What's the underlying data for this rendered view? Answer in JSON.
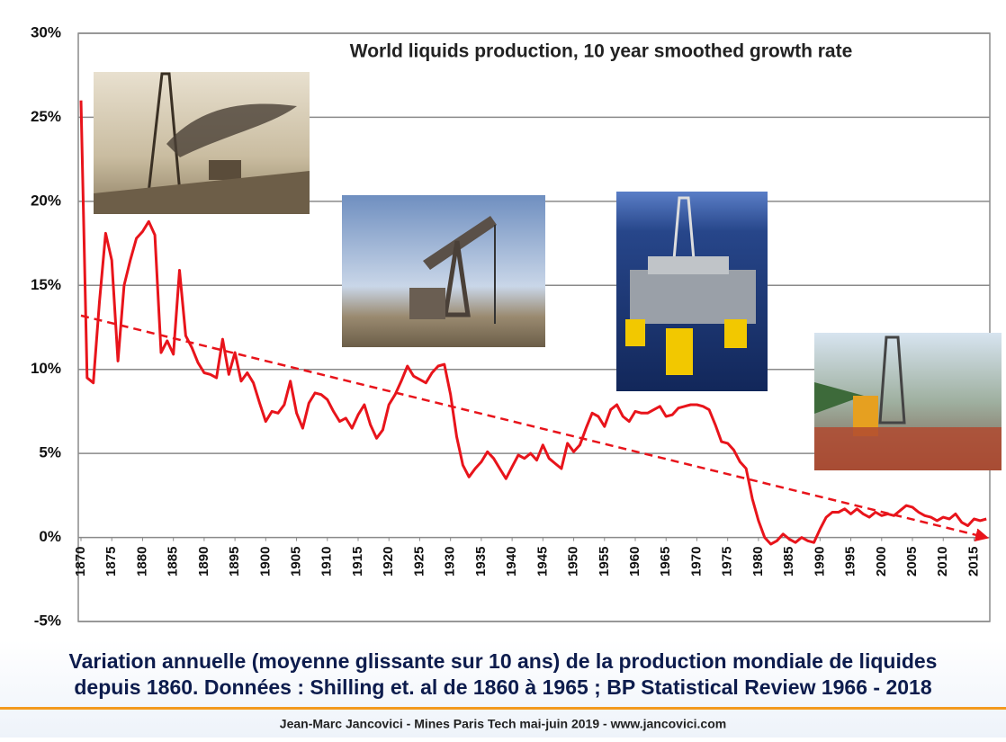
{
  "chart_data": {
    "type": "line",
    "title": "World liquids production, 10 year smoothed growth rate",
    "caption": [
      "Variation annuelle (moyenne glissante sur 10 ans) de la production mondiale de liquides",
      "depuis 1860. Données : Shilling et. al de 1860 à 1965 ; BP Statistical Review 1966 - 2018"
    ],
    "footer": "Jean-Marc Jancovici - Mines Paris Tech mai-juin 2019 - www.jancovici.com",
    "x": [
      1870,
      1871,
      1872,
      1873,
      1874,
      1875,
      1876,
      1877,
      1878,
      1879,
      1880,
      1881,
      1882,
      1883,
      1884,
      1885,
      1886,
      1887,
      1888,
      1889,
      1890,
      1891,
      1892,
      1893,
      1894,
      1895,
      1896,
      1897,
      1898,
      1899,
      1900,
      1901,
      1902,
      1903,
      1904,
      1905,
      1906,
      1907,
      1908,
      1909,
      1910,
      1911,
      1912,
      1913,
      1914,
      1915,
      1916,
      1917,
      1918,
      1919,
      1920,
      1921,
      1922,
      1923,
      1924,
      1925,
      1926,
      1927,
      1928,
      1929,
      1930,
      1931,
      1932,
      1933,
      1934,
      1935,
      1936,
      1937,
      1938,
      1939,
      1940,
      1941,
      1942,
      1943,
      1944,
      1945,
      1946,
      1947,
      1948,
      1949,
      1950,
      1951,
      1952,
      1953,
      1954,
      1955,
      1956,
      1957,
      1958,
      1959,
      1960,
      1961,
      1962,
      1963,
      1964,
      1965,
      1966,
      1967,
      1968,
      1969,
      1970,
      1971,
      1972,
      1973,
      1974,
      1975,
      1976,
      1977,
      1978,
      1979,
      1980,
      1981,
      1982,
      1983,
      1984,
      1985,
      1986,
      1987,
      1988,
      1989,
      1990,
      1991,
      1992,
      1993,
      1994,
      1995,
      1996,
      1997,
      1998,
      1999,
      2000,
      2001,
      2002,
      2003,
      2004,
      2005,
      2006,
      2007,
      2008,
      2009,
      2010,
      2011,
      2012,
      2013,
      2014,
      2015,
      2016,
      2017
    ],
    "series": [
      {
        "color": "#e8141b",
        "values": [
          26,
          9.5,
          9.2,
          14,
          18.1,
          16.5,
          10.5,
          15,
          16.5,
          17.8,
          18.2,
          18.8,
          18,
          11,
          11.7,
          10.9,
          15.9,
          12,
          11.3,
          10.4,
          9.8,
          9.7,
          9.5,
          11.8,
          9.7,
          11,
          9.3,
          9.8,
          9.2,
          8,
          6.9,
          7.5,
          7.4,
          7.9,
          9.3,
          7.4,
          6.5,
          8,
          8.6,
          8.5,
          8.2,
          7.5,
          6.9,
          7.1,
          6.5,
          7.3,
          7.9,
          6.7,
          5.9,
          6.4,
          7.9,
          8.5,
          9.3,
          10.2,
          9.6,
          9.4,
          9.2,
          9.8,
          10.2,
          10.3,
          8.5,
          6,
          4.3,
          3.6,
          4.1,
          4.5,
          5.1,
          4.7,
          4.1,
          3.5,
          4.2,
          4.9,
          4.7,
          5,
          4.6,
          5.5,
          4.7,
          4.4,
          4.1,
          5.6,
          5.1,
          5.5,
          6.5,
          7.4,
          7.2,
          6.6,
          7.6,
          7.9,
          7.2,
          6.9,
          7.5,
          7.4,
          7.4,
          7.6,
          7.8,
          7.2,
          7.3,
          7.7,
          7.8,
          7.9,
          7.9,
          7.8,
          7.6,
          6.7,
          5.7,
          5.6,
          5.2,
          4.5,
          4.1,
          2.3,
          1,
          0,
          -0.4,
          -0.2,
          0.2,
          -0.1,
          -0.3,
          0,
          -0.2,
          -0.3,
          0.5,
          1.2,
          1.5,
          1.5,
          1.7,
          1.4,
          1.7,
          1.4,
          1.2,
          1.5,
          1.3,
          1.4,
          1.3,
          1.6,
          1.9,
          1.8,
          1.5,
          1.3,
          1.2,
          1,
          1.2,
          1.1,
          1.4,
          0.9,
          0.7,
          1.1,
          1,
          1.1
        ]
      }
    ],
    "trend_line": {
      "x": [
        1870,
        2017
      ],
      "values": [
        13.2,
        0
      ],
      "color": "#e8141b",
      "dashed": true
    },
    "xlim": [
      1870,
      2018
    ],
    "xticks": [
      1870,
      1875,
      1880,
      1885,
      1890,
      1895,
      1900,
      1905,
      1910,
      1915,
      1920,
      1925,
      1930,
      1935,
      1940,
      1945,
      1950,
      1955,
      1960,
      1965,
      1970,
      1975,
      1980,
      1985,
      1990,
      1995,
      2000,
      2005,
      2010,
      2015
    ],
    "ylim": [
      -5,
      30
    ],
    "yticks": [
      {
        "value": -5,
        "label": "-5%"
      },
      {
        "value": 0,
        "label": "0%"
      },
      {
        "value": 5,
        "label": "5%"
      },
      {
        "value": 10,
        "label": "10%"
      },
      {
        "value": 15,
        "label": "15%"
      },
      {
        "value": 20,
        "label": "20%"
      },
      {
        "value": 25,
        "label": "25%"
      },
      {
        "value": 30,
        "label": "30%"
      }
    ],
    "grid": true
  }
}
